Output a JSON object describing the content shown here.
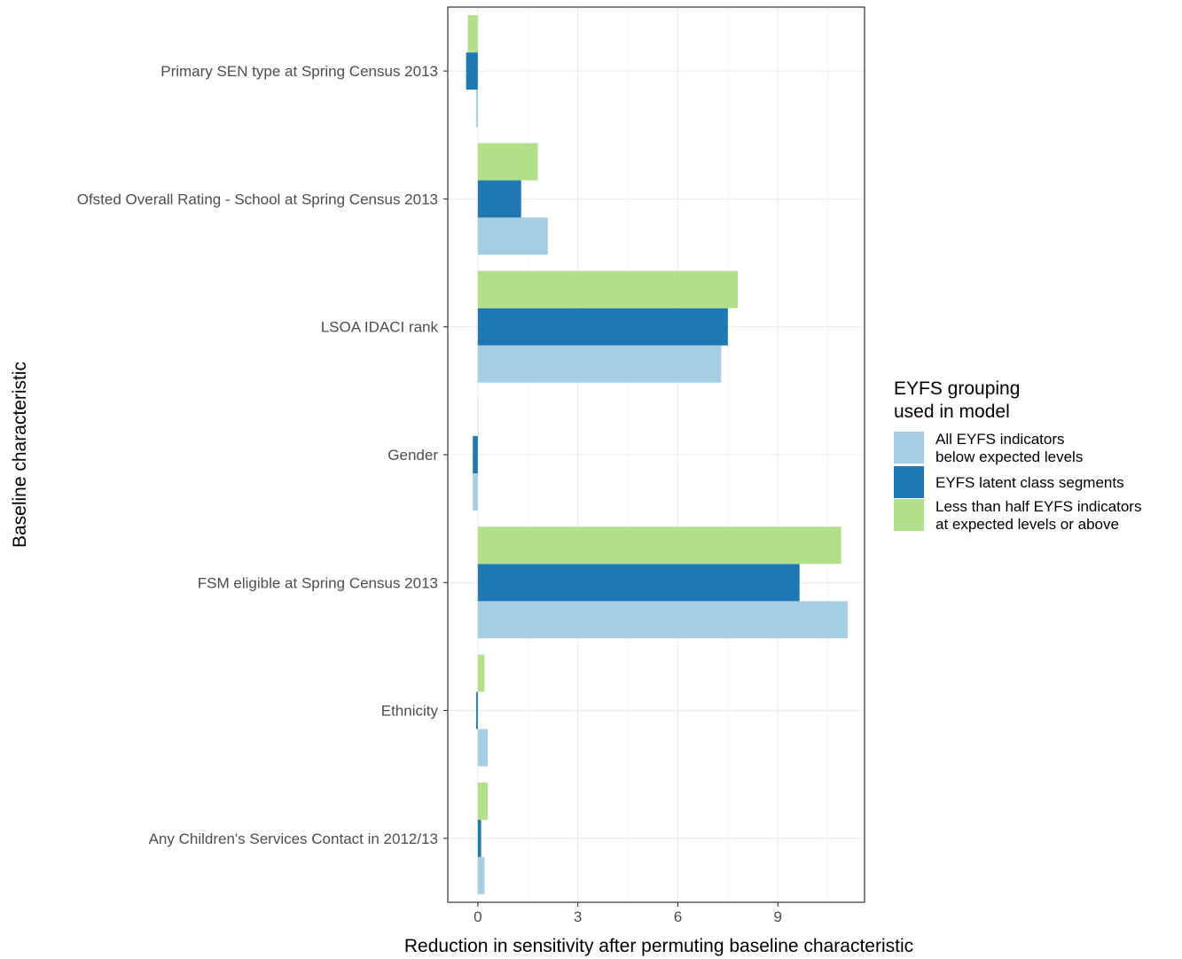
{
  "chart_data": {
    "type": "bar",
    "orientation": "horizontal",
    "xlabel": "Reduction in sensitivity after permuting baseline characteristic",
    "ylabel": "Baseline characteristic",
    "xlim": [
      -0.9,
      11.6
    ],
    "x_ticks": [
      "0",
      "3",
      "6",
      "9"
    ],
    "grid": true,
    "legend_position": "right",
    "categories": [
      "Primary SEN type at Spring Census 2013",
      "Ofsted Overall Rating - School at Spring Census 2013",
      "LSOA IDACI rank",
      "Gender",
      "FSM eligible at Spring Census 2013",
      "Ethnicity",
      "Any Children's Services Contact in 2012/13"
    ],
    "series": [
      {
        "name": "All EYFS indicators below expected levels",
        "color": "#a6cee3",
        "values": [
          -0.05,
          2.1,
          7.3,
          -0.15,
          11.1,
          0.3,
          0.2
        ]
      },
      {
        "name": "EYFS latent class segments",
        "color": "#1f78b4",
        "values": [
          -0.35,
          1.3,
          7.5,
          -0.15,
          9.65,
          -0.05,
          0.1
        ]
      },
      {
        "name": "Less than half EYFS indicators at expected levels or above",
        "color": "#b2df8a",
        "values": [
          -0.3,
          1.8,
          7.8,
          0.0,
          10.9,
          0.2,
          0.3
        ]
      }
    ]
  },
  "legend": {
    "title_lines": [
      "EYFS grouping",
      "used in model"
    ],
    "items": [
      {
        "lines": [
          "All EYFS indicators",
          "below expected levels"
        ]
      },
      {
        "lines": [
          "EYFS latent class segments"
        ]
      },
      {
        "lines": [
          "Less than half EYFS indicators",
          "at expected levels or above"
        ]
      }
    ]
  }
}
